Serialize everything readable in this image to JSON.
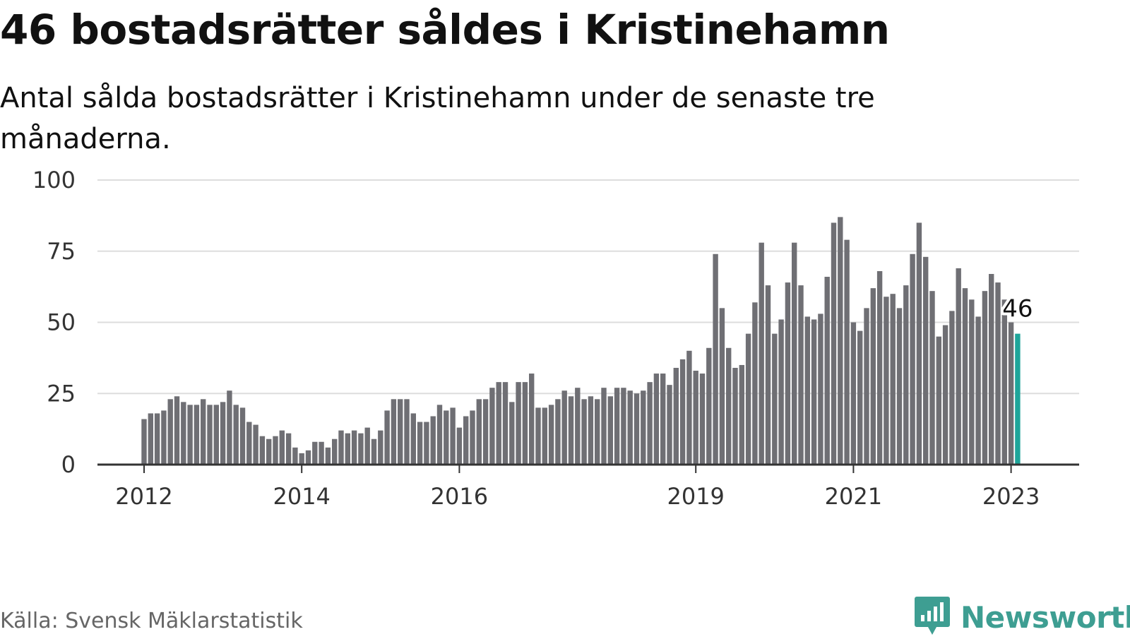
{
  "header": {
    "title": "46 bostadsrätter såldes i Kristinehamn",
    "subtitle": "Antal sålda bostadsrätter i Kristinehamn under de senaste tre månaderna."
  },
  "footer": {
    "source": "Källa: Svensk Mäklarstatistik",
    "brand": "Newsworthy",
    "brand_icon": "bar-chart-speech-bubble-icon"
  },
  "colors": {
    "bar": "#6f6f74",
    "highlight": "#1ea59a",
    "grid": "#dddddd",
    "axis": "#333333",
    "brand": "#3e9e92"
  },
  "chart_data": {
    "type": "bar",
    "title": "",
    "xlabel": "",
    "ylabel": "",
    "ylim": [
      0,
      100
    ],
    "yticks": [
      "0",
      "25",
      "50",
      "75",
      "100"
    ],
    "xticks": [
      {
        "label": "2012",
        "index": 0
      },
      {
        "label": "2014",
        "index": 24
      },
      {
        "label": "2016",
        "index": 48
      },
      {
        "label": "2019",
        "index": 84
      },
      {
        "label": "2021",
        "index": 108
      },
      {
        "label": "2023",
        "index": 132
      }
    ],
    "grid": true,
    "highlight_index": 133,
    "highlight_label": "46",
    "values": [
      16,
      18,
      18,
      19,
      23,
      24,
      22,
      21,
      21,
      23,
      21,
      21,
      22,
      26,
      21,
      20,
      15,
      14,
      10,
      9,
      10,
      12,
      11,
      6,
      4,
      5,
      8,
      8,
      6,
      9,
      12,
      11,
      12,
      11,
      13,
      9,
      12,
      19,
      23,
      23,
      23,
      18,
      15,
      15,
      17,
      21,
      19,
      20,
      13,
      17,
      19,
      23,
      23,
      27,
      29,
      29,
      22,
      29,
      29,
      32,
      20,
      20,
      21,
      23,
      26,
      24,
      27,
      23,
      24,
      23,
      27,
      24,
      27,
      27,
      26,
      25,
      26,
      29,
      32,
      32,
      28,
      34,
      37,
      40,
      33,
      32,
      41,
      74,
      55,
      41,
      34,
      35,
      46,
      57,
      78,
      63,
      46,
      51,
      64,
      78,
      63,
      52,
      51,
      53,
      66,
      85,
      87,
      79,
      50,
      47,
      55,
      62,
      68,
      59,
      60,
      55,
      63,
      74,
      85,
      73,
      61,
      45,
      49,
      54,
      69,
      62,
      58,
      52,
      61,
      67,
      64,
      58,
      50,
      46
    ]
  }
}
